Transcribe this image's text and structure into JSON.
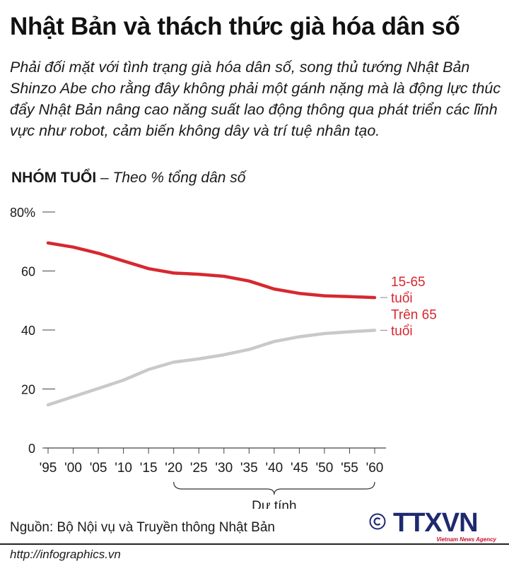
{
  "header": {
    "title": "Nhật Bản và thách thức già hóa dân số",
    "subtitle": "Phải đối mặt với tình trạng già hóa dân số, song thủ tướng Nhật Bản Shinzo Abe cho rằng đây không phải một gánh nặng mà là động lực thúc đẩy Nhật Bản nâng cao năng suất lao động thông qua phát triển các lĩnh vực như robot, cảm biến không dây và trí tuệ nhân tạo."
  },
  "section": {
    "label_bold": "NHÓM TUỔI",
    "label_italic": " – Theo % tổng dân số"
  },
  "chart_data": {
    "type": "line",
    "title": "",
    "x": [
      "'95",
      "'00",
      "'05",
      "'10",
      "'15",
      "'20",
      "'25",
      "'30",
      "'35",
      "'40",
      "'45",
      "'50",
      "'55",
      "'60"
    ],
    "series": [
      {
        "name": "15-65 tuổi",
        "label_lines": [
          "15-65",
          "tuổi"
        ],
        "color": "#d7282f",
        "values": [
          69.5,
          68.1,
          66,
          63.4,
          60.8,
          59.3,
          58.9,
          58.2,
          56.6,
          53.9,
          52.4,
          51.6,
          51.3,
          51
        ]
      },
      {
        "name": "Trên 65 tuổi",
        "label_lines": [
          "Trên 65",
          "tuổi"
        ],
        "color": "#c9c9c9",
        "values": [
          14.6,
          17.4,
          20.2,
          23,
          26.6,
          29.1,
          30.2,
          31.6,
          33.4,
          36.1,
          37.7,
          38.8,
          39.4,
          39.9
        ]
      }
    ],
    "y_ticks": [
      "80%",
      "60",
      "40",
      "20",
      "0"
    ],
    "y_tick_values": [
      80,
      60,
      40,
      20,
      0
    ],
    "ylim": [
      0,
      80
    ],
    "grid": false,
    "projection_label": "Dự tính",
    "projection_range": [
      "'20",
      "'60"
    ]
  },
  "footer": {
    "source": "Nguồn: Bộ Nội vụ và Truyền thông Nhật Bản",
    "url": "http://infographics.vn",
    "logo_text": "TTXVN",
    "logo_sub": "Vietnam News Agency"
  },
  "colors": {
    "red": "#d7282f",
    "gray": "#c9c9c9",
    "axis": "#444444",
    "logo_blue": "#1e2a6e"
  }
}
